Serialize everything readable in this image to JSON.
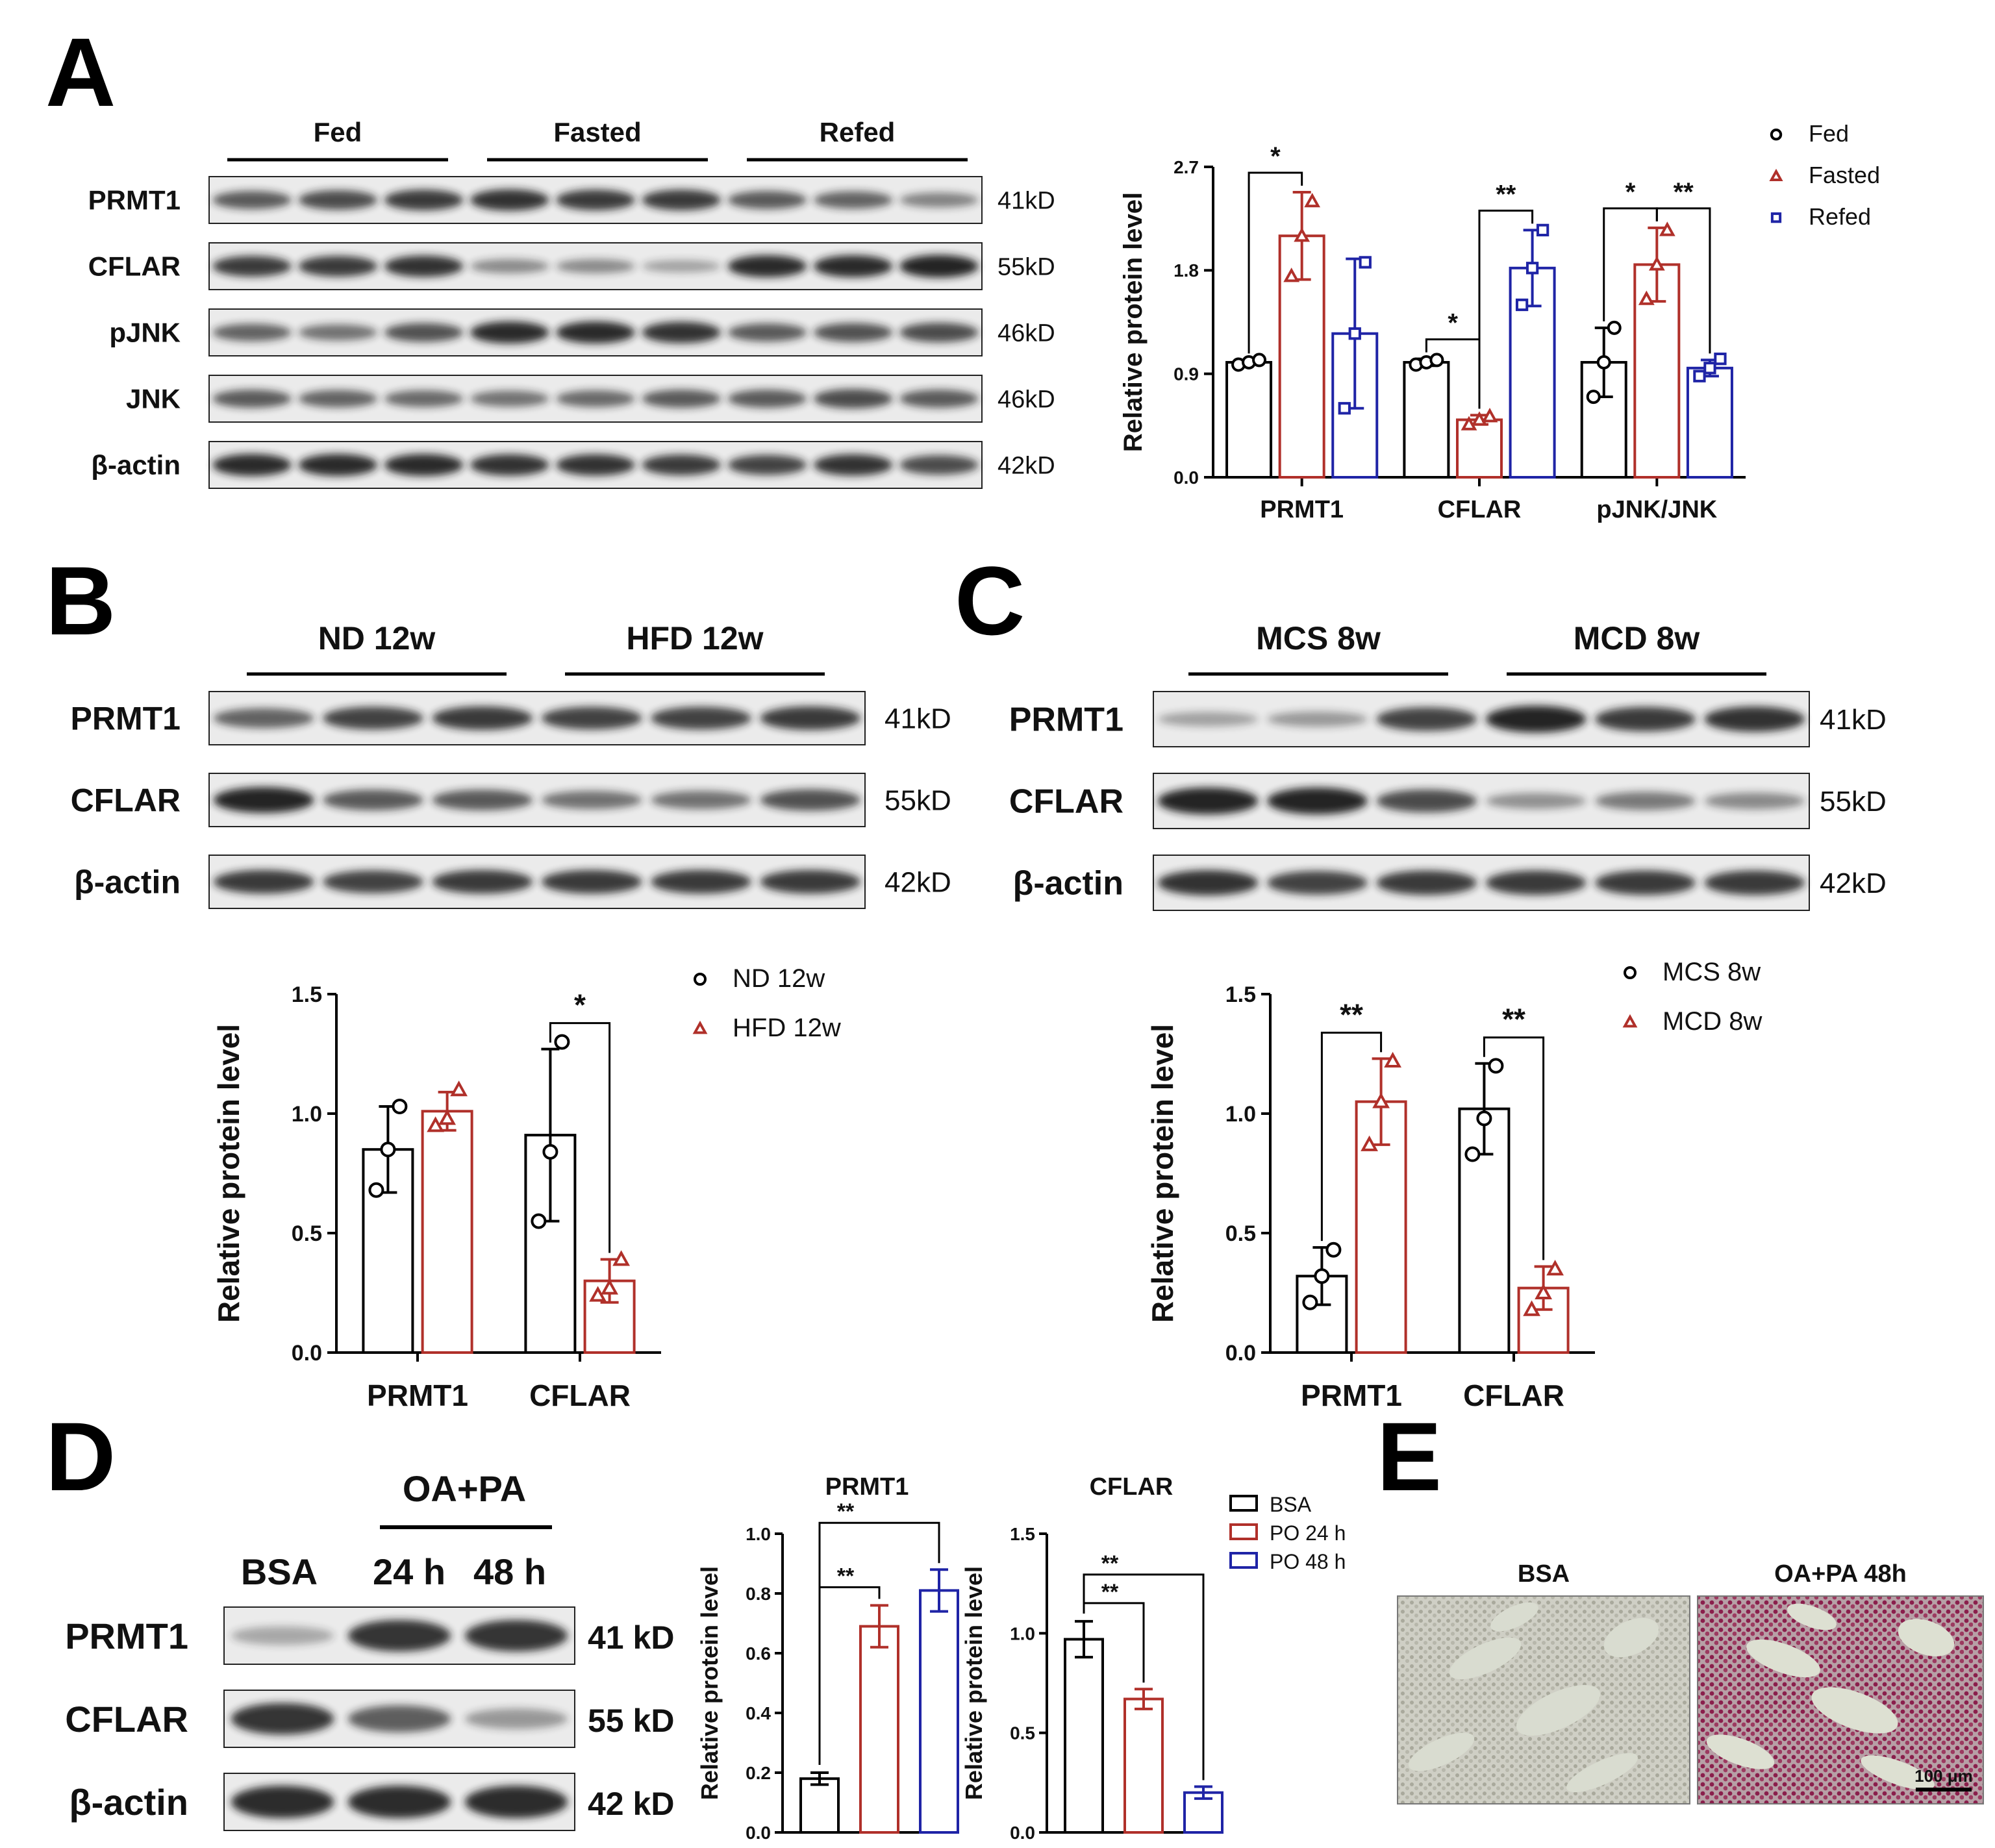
{
  "colors": {
    "black": "#000000",
    "red": "#b0302a",
    "blue": "#1f24a6",
    "band": "#1a1a1a",
    "blot_bg": "#ebebeb"
  },
  "panels": {
    "A": {
      "letter": "A",
      "groups": [
        "Fed",
        "Fasted",
        "Refed"
      ],
      "blots": [
        {
          "label": "PRMT1",
          "kd": "41kD",
          "intensity": [
            0.6,
            0.7,
            0.8,
            0.85,
            0.8,
            0.8,
            0.6,
            0.55,
            0.35
          ]
        },
        {
          "label": "CFLAR",
          "kd": "55kD",
          "intensity": [
            0.8,
            0.8,
            0.85,
            0.3,
            0.3,
            0.15,
            0.9,
            0.9,
            0.95
          ]
        },
        {
          "label": "pJNK",
          "kd": "46kD",
          "intensity": [
            0.55,
            0.45,
            0.65,
            0.9,
            0.9,
            0.85,
            0.6,
            0.65,
            0.7
          ]
        },
        {
          "label": "JNK",
          "kd": "46kD",
          "intensity": [
            0.6,
            0.55,
            0.5,
            0.45,
            0.5,
            0.6,
            0.6,
            0.7,
            0.6
          ]
        },
        {
          "label": "β-actin",
          "kd": "42kD",
          "intensity": [
            0.9,
            0.9,
            0.9,
            0.85,
            0.85,
            0.8,
            0.75,
            0.85,
            0.7
          ]
        }
      ]
    },
    "B": {
      "letter": "B",
      "groups": [
        "ND 12w",
        "HFD 12w"
      ],
      "blots": [
        {
          "label": "PRMT1",
          "kd": "41kD",
          "intensity": [
            0.55,
            0.75,
            0.8,
            0.75,
            0.75,
            0.8
          ]
        },
        {
          "label": "CFLAR",
          "kd": "55kD",
          "intensity": [
            0.95,
            0.6,
            0.6,
            0.45,
            0.45,
            0.65
          ]
        },
        {
          "label": "β-actin",
          "kd": "42kD",
          "intensity": [
            0.8,
            0.75,
            0.8,
            0.8,
            0.8,
            0.8
          ]
        }
      ]
    },
    "C": {
      "letter": "C",
      "groups": [
        "MCS 8w",
        "MCD 8w"
      ],
      "blots": [
        {
          "label": "PRMT1",
          "kd": "41kD",
          "intensity": [
            0.15,
            0.2,
            0.75,
            0.95,
            0.8,
            0.85
          ]
        },
        {
          "label": "CFLAR",
          "kd": "55kD",
          "intensity": [
            0.95,
            0.95,
            0.7,
            0.25,
            0.4,
            0.3
          ]
        },
        {
          "label": "β-actin",
          "kd": "42kD",
          "intensity": [
            0.85,
            0.75,
            0.8,
            0.8,
            0.8,
            0.8
          ]
        }
      ]
    },
    "D": {
      "letter": "D",
      "group_label": "OA+PA",
      "lane_labels": [
        "BSA",
        "24 h",
        "48 h"
      ],
      "blots": [
        {
          "label": "PRMT1",
          "kd": "41 kD",
          "intensity": [
            0.15,
            0.85,
            0.85
          ]
        },
        {
          "label": "CFLAR",
          "kd": "55 kD",
          "intensity": [
            0.85,
            0.6,
            0.25
          ]
        },
        {
          "label": "β-actin",
          "kd": "42 kD",
          "intensity": [
            0.9,
            0.9,
            0.9
          ]
        }
      ]
    },
    "E": {
      "letter": "E",
      "image_titles": [
        "BSA",
        "OA+PA 48h"
      ],
      "scale_bar": "100 μm",
      "stain_level": [
        0.05,
        0.65
      ]
    }
  },
  "chart_data": [
    {
      "panel": "A",
      "type": "bar",
      "categories": [
        "PRMT1",
        "CFLAR",
        "pJNK/JNK"
      ],
      "ylabel": "Relative protein level",
      "ylim": [
        0,
        2.7
      ],
      "yticks": [
        "0.0",
        "0.9",
        "1.8",
        "2.7"
      ],
      "series": [
        {
          "name": "Fed",
          "color": "#000000",
          "marker": "circle",
          "values": [
            1.0,
            1.0,
            1.0
          ],
          "err": [
            0.02,
            0.03,
            0.3
          ],
          "points": [
            [
              0.98,
              1.0,
              1.02
            ],
            [
              0.98,
              1.0,
              1.02
            ],
            [
              0.7,
              1.0,
              1.3
            ]
          ]
        },
        {
          "name": "Fasted",
          "color": "#b0302a",
          "marker": "triangle",
          "values": [
            2.1,
            0.5,
            1.85
          ],
          "err": [
            0.38,
            0.04,
            0.32
          ],
          "points": [
            [
              1.75,
              2.1,
              2.4
            ],
            [
              0.46,
              0.5,
              0.53
            ],
            [
              1.55,
              1.85,
              2.15
            ]
          ]
        },
        {
          "name": "Refed",
          "color": "#1f24a6",
          "marker": "square",
          "values": [
            1.25,
            1.82,
            0.95
          ],
          "err": [
            0.65,
            0.33,
            0.07
          ],
          "points": [
            [
              0.6,
              1.25,
              1.87
            ],
            [
              1.5,
              1.82,
              2.15
            ],
            [
              0.88,
              0.95,
              1.03
            ]
          ]
        }
      ],
      "significance": [
        {
          "cat": 0,
          "from": 0,
          "to": 1,
          "label": "*"
        },
        {
          "cat": 1,
          "from": 0,
          "to": 1,
          "label": "*"
        },
        {
          "cat": 1,
          "from": 1,
          "to": 2,
          "label": "**"
        },
        {
          "cat": 2,
          "from": 0,
          "to": 1,
          "label": "*"
        },
        {
          "cat": 2,
          "from": 1,
          "to": 2,
          "label": "**"
        }
      ]
    },
    {
      "panel": "B",
      "type": "bar",
      "categories": [
        "PRMT1",
        "CFLAR"
      ],
      "ylabel": "Relative protein level",
      "ylim": [
        0,
        1.5
      ],
      "yticks": [
        "0.0",
        "0.5",
        "1.0",
        "1.5"
      ],
      "series": [
        {
          "name": "ND 12w",
          "color": "#000000",
          "marker": "circle",
          "values": [
            0.85,
            0.91
          ],
          "err": [
            0.18,
            0.36
          ],
          "points": [
            [
              0.68,
              0.85,
              1.03
            ],
            [
              0.55,
              0.84,
              1.3
            ]
          ]
        },
        {
          "name": "HFD 12w",
          "color": "#b0302a",
          "marker": "triangle",
          "values": [
            1.01,
            0.3
          ],
          "err": [
            0.08,
            0.09
          ],
          "points": [
            [
              0.95,
              0.98,
              1.1
            ],
            [
              0.24,
              0.27,
              0.39
            ]
          ]
        }
      ],
      "significance": [
        {
          "cat": 1,
          "from": 0,
          "to": 1,
          "label": "*"
        }
      ]
    },
    {
      "panel": "C",
      "type": "bar",
      "categories": [
        "PRMT1",
        "CFLAR"
      ],
      "ylabel": "Relative protein level",
      "ylim": [
        0,
        1.5
      ],
      "yticks": [
        "0.0",
        "0.5",
        "1.0",
        "1.5"
      ],
      "series": [
        {
          "name": "MCS 8w",
          "color": "#000000",
          "marker": "circle",
          "values": [
            0.32,
            1.02
          ],
          "err": [
            0.12,
            0.19
          ],
          "points": [
            [
              0.21,
              0.32,
              0.43
            ],
            [
              0.83,
              0.98,
              1.2
            ]
          ]
        },
        {
          "name": "MCD 8w",
          "color": "#b0302a",
          "marker": "triangle",
          "values": [
            1.05,
            0.27
          ],
          "err": [
            0.18,
            0.09
          ],
          "points": [
            [
              0.87,
              1.05,
              1.22
            ],
            [
              0.18,
              0.25,
              0.35
            ]
          ]
        }
      ],
      "significance": [
        {
          "cat": 0,
          "from": 0,
          "to": 1,
          "label": "**"
        },
        {
          "cat": 1,
          "from": 0,
          "to": 1,
          "label": "**"
        }
      ]
    },
    {
      "panel": "D-PRMT1",
      "type": "bar",
      "title": "PRMT1",
      "categories": [
        "BSA",
        "PO 24 h",
        "PO 48 h"
      ],
      "ylabel": "Relative protein level",
      "ylim": [
        0,
        1.0
      ],
      "yticks": [
        "0.0",
        "0.2",
        "0.4",
        "0.6",
        "0.8",
        "1.0"
      ],
      "colors": [
        "#000000",
        "#b0302a",
        "#1f24a6"
      ],
      "values": [
        0.18,
        0.69,
        0.81
      ],
      "err": [
        0.02,
        0.07,
        0.07
      ],
      "significance": [
        {
          "from": 0,
          "to": 1,
          "label": "**"
        },
        {
          "from": 0,
          "to": 2,
          "label": "**"
        }
      ]
    },
    {
      "panel": "D-CFLAR",
      "type": "bar",
      "title": "CFLAR",
      "categories": [
        "BSA",
        "PO 24 h",
        "PO 48 h"
      ],
      "ylabel": "Relative protein level",
      "ylim": [
        0,
        1.5
      ],
      "yticks": [
        "0.0",
        "0.5",
        "1.0",
        "1.5"
      ],
      "colors": [
        "#000000",
        "#b0302a",
        "#1f24a6"
      ],
      "values": [
        0.97,
        0.67,
        0.2
      ],
      "err": [
        0.09,
        0.05,
        0.03
      ],
      "legend": [
        "BSA",
        "PO 24 h",
        "PO 48 h"
      ],
      "significance": [
        {
          "from": 0,
          "to": 1,
          "label": "**"
        },
        {
          "from": 0,
          "to": 2,
          "label": "**"
        }
      ]
    }
  ]
}
